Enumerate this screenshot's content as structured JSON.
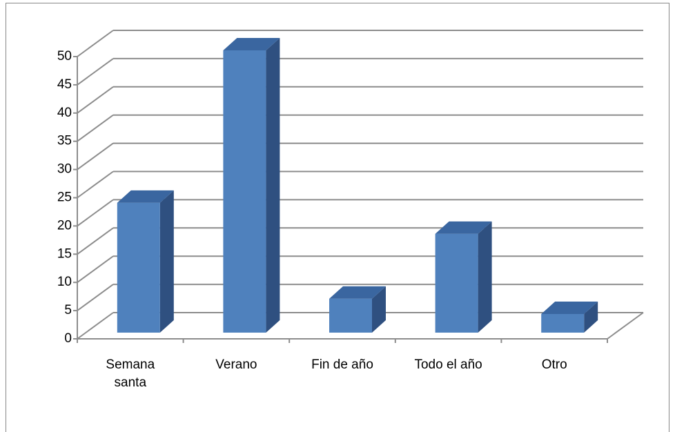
{
  "chart_data": {
    "type": "bar3d",
    "categories": [
      "Semana santa",
      "Verano",
      "Fin de año",
      "Todo el año",
      "Otro"
    ],
    "values": [
      23,
      50,
      6,
      17.5,
      3.3
    ],
    "color": "#4f81bd",
    "ylim": [
      0,
      50
    ],
    "yticks": [
      0,
      5,
      10,
      15,
      20,
      25,
      30,
      35,
      40,
      45,
      50
    ],
    "grid": true
  }
}
